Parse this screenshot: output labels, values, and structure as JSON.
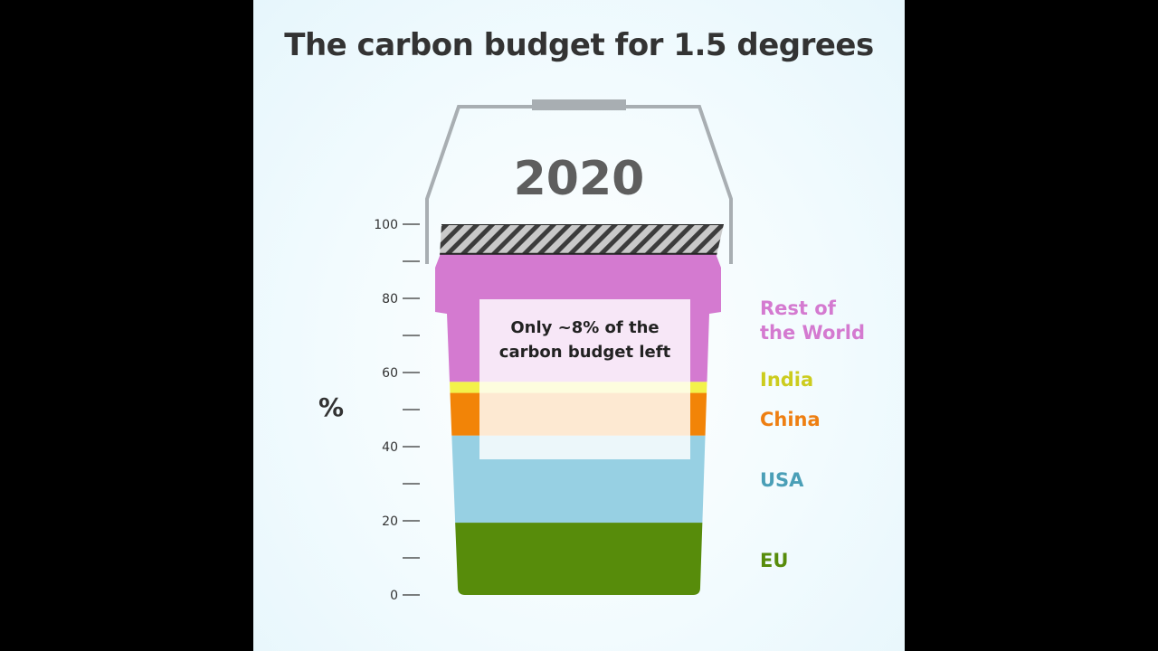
{
  "chart_data": {
    "type": "bar",
    "title": "The carbon budget for 1.5 degrees",
    "label": "2020",
    "ylabel": "%",
    "ylim": [
      0,
      100
    ],
    "yticks": [
      0,
      20,
      40,
      60,
      80,
      100
    ],
    "series": [
      {
        "name": "EU",
        "value": 19.5,
        "color": "#578c0b"
      },
      {
        "name": "USA",
        "value": 23.5,
        "color": "#97d0e3"
      },
      {
        "name": "China",
        "value": 11.5,
        "color": "#f28407"
      },
      {
        "name": "India",
        "value": 3,
        "color": "#f3f24a"
      },
      {
        "name": "Rest of the World",
        "value": 34.5,
        "color": "#d47ad0"
      }
    ],
    "remaining": {
      "value": 8
    },
    "annotation": "Only ~8% of the carbon budget left",
    "legend_labels": {
      "rest_of_world": [
        "Rest of",
        "the World"
      ],
      "india": "India",
      "china": "China",
      "usa": "USA",
      "eu": "EU"
    },
    "legend_colors": {
      "rest_of_world": "#d47ad0",
      "india": "#cccc1e",
      "china": "#ee7f12",
      "usa": "#4a9fb7",
      "eu": "#578c0b"
    }
  }
}
